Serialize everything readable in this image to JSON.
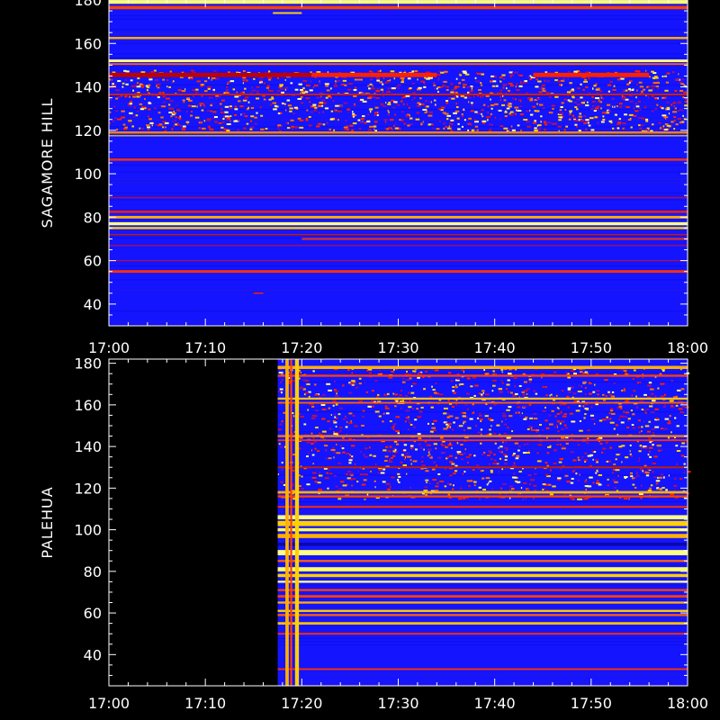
{
  "chart_data": [
    {
      "type": "heatmap",
      "ylabel": "SAGAMORE  HILL",
      "x_ticks": [
        "17:00",
        "17:10",
        "17:20",
        "17:30",
        "17:40",
        "17:50",
        "18:00"
      ],
      "y_ticks": [
        "40",
        "60",
        "80",
        "100",
        "120",
        "140",
        "160",
        "180"
      ],
      "xlim_minutes": [
        0,
        60
      ],
      "ylim": [
        30,
        180
      ],
      "data_start_minute": 0,
      "background_color": "#1414ff",
      "dense_band": [
        120,
        148
      ],
      "bands": [
        {
          "y": 179,
          "h": 1.5,
          "c": "#ffff60",
          "s": 0,
          "e": 60
        },
        {
          "y": 176.5,
          "h": 1.5,
          "c": "#ff4000",
          "s": 0,
          "e": 60
        },
        {
          "y": 174,
          "h": 0.8,
          "c": "#ffd000",
          "s": 17,
          "e": 20
        },
        {
          "y": 162.5,
          "h": 1,
          "c": "#ffb000",
          "s": 0,
          "e": 60
        },
        {
          "y": 152,
          "h": 1.2,
          "c": "#ffff80",
          "s": 0,
          "e": 60
        },
        {
          "y": 150.5,
          "h": 0.8,
          "c": "#ff6000",
          "s": 0,
          "e": 60
        },
        {
          "y": 145.5,
          "h": 2,
          "c": "#ff2000",
          "s": 21,
          "e": 34
        },
        {
          "y": 145.5,
          "h": 2,
          "c": "#ff2000",
          "s": 44,
          "e": 56
        },
        {
          "y": 145.5,
          "h": 2,
          "c": "#c00000",
          "s": 0,
          "e": 21
        },
        {
          "y": 136.5,
          "h": 0.8,
          "c": "#d02000",
          "s": 0,
          "e": 60
        },
        {
          "y": 119,
          "h": 1,
          "c": "#ff8000",
          "s": 0,
          "e": 60
        },
        {
          "y": 117.5,
          "h": 0.5,
          "c": "#ffd000",
          "s": 0,
          "e": 60
        },
        {
          "y": 106.5,
          "h": 1,
          "c": "#ff3000",
          "s": 0,
          "e": 60
        },
        {
          "y": 89,
          "h": 0.6,
          "c": "#a01060",
          "s": 0,
          "e": 60
        },
        {
          "y": 82.5,
          "h": 1,
          "c": "#ff2000",
          "s": 0,
          "e": 60
        },
        {
          "y": 80,
          "h": 1.2,
          "c": "#ffb000",
          "s": 0,
          "e": 60
        },
        {
          "y": 77,
          "h": 1.4,
          "c": "#ffff80",
          "s": 0,
          "e": 60
        },
        {
          "y": 75,
          "h": 1,
          "c": "#ffd000",
          "s": 0,
          "e": 60
        },
        {
          "y": 72,
          "h": 0.6,
          "c": "#c02000",
          "s": 0,
          "e": 60
        },
        {
          "y": 70,
          "h": 1,
          "c": "#d03030",
          "s": 20,
          "e": 60
        },
        {
          "y": 67,
          "h": 0.6,
          "c": "#a01060",
          "s": 0,
          "e": 60
        },
        {
          "y": 60,
          "h": 0.6,
          "c": "#a01060",
          "s": 0,
          "e": 60
        },
        {
          "y": 55,
          "h": 1.2,
          "c": "#ff3000",
          "s": 0,
          "e": 60
        },
        {
          "y": 45,
          "h": 0.6,
          "c": "#ff2000",
          "s": 15,
          "e": 16
        }
      ],
      "verticals": []
    },
    {
      "type": "heatmap",
      "ylabel": "PALEHUA",
      "x_ticks": [
        "17:00",
        "17:10",
        "17:20",
        "17:30",
        "17:40",
        "17:50",
        "18:00"
      ],
      "y_ticks": [
        "40",
        "60",
        "80",
        "100",
        "120",
        "140",
        "160",
        "180"
      ],
      "xlim_minutes": [
        0,
        60
      ],
      "ylim": [
        25,
        182
      ],
      "data_start_minute": 17.5,
      "background_color": "#1414ff",
      "dense_band": [
        115,
        178
      ],
      "bands": [
        {
          "y": 178,
          "h": 1.5,
          "c": "#ffb000",
          "s": 17.5,
          "e": 60
        },
        {
          "y": 174,
          "h": 1,
          "c": "#ff4000",
          "s": 17.5,
          "e": 60
        },
        {
          "y": 163,
          "h": 1,
          "c": "#ffc000",
          "s": 17.5,
          "e": 60
        },
        {
          "y": 161,
          "h": 0.8,
          "c": "#ff6000",
          "s": 17.5,
          "e": 60
        },
        {
          "y": 145,
          "h": 1,
          "c": "#ff8000",
          "s": 17.5,
          "e": 60
        },
        {
          "y": 143,
          "h": 0.8,
          "c": "#ff3000",
          "s": 17.5,
          "e": 60
        },
        {
          "y": 130,
          "h": 0.8,
          "c": "#c02000",
          "s": 17.5,
          "e": 60
        },
        {
          "y": 118,
          "h": 1.2,
          "c": "#ffb000",
          "s": 17.5,
          "e": 60
        },
        {
          "y": 116,
          "h": 1,
          "c": "#ff4000",
          "s": 17.5,
          "e": 60
        },
        {
          "y": 111,
          "h": 0.8,
          "c": "#ff3000",
          "s": 17.5,
          "e": 60
        },
        {
          "y": 106,
          "h": 2,
          "c": "#ffff80",
          "s": 17.5,
          "e": 60
        },
        {
          "y": 103,
          "h": 2.5,
          "c": "#ffd000",
          "s": 17.5,
          "e": 60
        },
        {
          "y": 100,
          "h": 1.5,
          "c": "#ffff60",
          "s": 17.5,
          "e": 60
        },
        {
          "y": 97,
          "h": 2,
          "c": "#ffb000",
          "s": 17.5,
          "e": 60
        },
        {
          "y": 93,
          "h": 1.5,
          "c": "#0a0aa0",
          "s": 17.5,
          "e": 60
        },
        {
          "y": 89,
          "h": 2.5,
          "c": "#ffff80",
          "s": 17.5,
          "e": 60
        },
        {
          "y": 85,
          "h": 1,
          "c": "#ff6000",
          "s": 17.5,
          "e": 60
        },
        {
          "y": 81,
          "h": 2,
          "c": "#ffff60",
          "s": 17.5,
          "e": 60
        },
        {
          "y": 78,
          "h": 1.5,
          "c": "#ffd000",
          "s": 17.5,
          "e": 60
        },
        {
          "y": 75,
          "h": 1,
          "c": "#ffff80",
          "s": 17.5,
          "e": 60
        },
        {
          "y": 71,
          "h": 1,
          "c": "#ff4000",
          "s": 17.5,
          "e": 60
        },
        {
          "y": 68,
          "h": 1.2,
          "c": "#ff4000",
          "s": 17.5,
          "e": 60
        },
        {
          "y": 65,
          "h": 1,
          "c": "#ffb000",
          "s": 17.5,
          "e": 60
        },
        {
          "y": 61,
          "h": 1,
          "c": "#ffd000",
          "s": 17.5,
          "e": 60
        },
        {
          "y": 59,
          "h": 1,
          "c": "#ff6000",
          "s": 17.5,
          "e": 60
        },
        {
          "y": 55,
          "h": 1.2,
          "c": "#ffc000",
          "s": 17.5,
          "e": 60
        },
        {
          "y": 50,
          "h": 0.8,
          "c": "#ff3000",
          "s": 17.5,
          "e": 60
        },
        {
          "y": 33,
          "h": 0.8,
          "c": "#ff3000",
          "s": 17.5,
          "e": 60
        }
      ],
      "verticals": [
        {
          "t": 18.3,
          "w": 0.35,
          "c": "#ffb000"
        },
        {
          "t": 18.8,
          "w": 0.2,
          "c": "#ff4000"
        },
        {
          "t": 19.3,
          "w": 0.4,
          "c": "#ffd000"
        }
      ]
    }
  ]
}
